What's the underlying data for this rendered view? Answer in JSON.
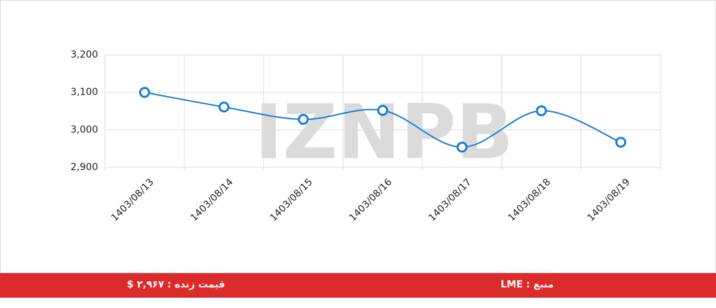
{
  "chart_data": {
    "type": "line",
    "categories": [
      "1403/08/13",
      "1403/08/14",
      "1403/08/15",
      "1403/08/16",
      "1403/08/17",
      "1403/08/18",
      "1403/08/19"
    ],
    "values": [
      3100,
      3061,
      3028,
      3052,
      2954,
      3051,
      2967
    ],
    "color": "#1a7fd4",
    "ylim": [
      2900,
      3200
    ],
    "yticks": [
      {
        "value": 2900,
        "label": "2,900"
      },
      {
        "value": 3000,
        "label": "3,000"
      },
      {
        "value": 3100,
        "label": "3,100"
      },
      {
        "value": 3200,
        "label": "3,200"
      }
    ],
    "grid": true,
    "watermark": "IZNPB"
  },
  "footer": {
    "source": "منبع : LME",
    "live_price": "قیمت زنده : ۲,۹۶۷ $"
  }
}
